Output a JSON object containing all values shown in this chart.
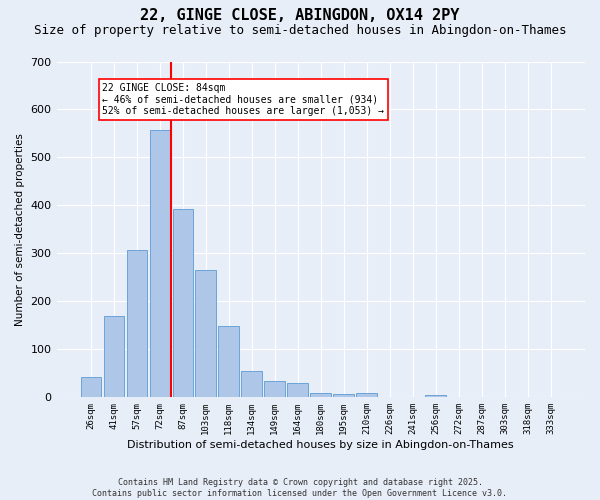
{
  "title": "22, GINGE CLOSE, ABINGDON, OX14 2PY",
  "subtitle": "Size of property relative to semi-detached houses in Abingdon-on-Thames",
  "xlabel": "Distribution of semi-detached houses by size in Abingdon-on-Thames",
  "ylabel": "Number of semi-detached properties",
  "categories": [
    "26sqm",
    "41sqm",
    "57sqm",
    "72sqm",
    "87sqm",
    "103sqm",
    "118sqm",
    "134sqm",
    "149sqm",
    "164sqm",
    "180sqm",
    "195sqm",
    "210sqm",
    "226sqm",
    "241sqm",
    "256sqm",
    "272sqm",
    "287sqm",
    "303sqm",
    "318sqm",
    "333sqm"
  ],
  "values": [
    42,
    170,
    307,
    557,
    393,
    265,
    148,
    54,
    35,
    30,
    10,
    7,
    10,
    0,
    0,
    5,
    0,
    0,
    0,
    0,
    0
  ],
  "bar_color": "#aec6e8",
  "bar_edge_color": "#5b9bd5",
  "vline_x_index": 3.5,
  "vline_color": "red",
  "ylim": [
    0,
    700
  ],
  "yticks": [
    0,
    100,
    200,
    300,
    400,
    500,
    600,
    700
  ],
  "annotation_title": "22 GINGE CLOSE: 84sqm",
  "annotation_line1": "← 46% of semi-detached houses are smaller (934)",
  "annotation_line2": "52% of semi-detached houses are larger (1,053) →",
  "annotation_box_color": "white",
  "annotation_box_edge": "red",
  "footer_line1": "Contains HM Land Registry data © Crown copyright and database right 2025.",
  "footer_line2": "Contains public sector information licensed under the Open Government Licence v3.0.",
  "background_color": "#e8eef8",
  "title_fontsize": 11,
  "subtitle_fontsize": 9
}
